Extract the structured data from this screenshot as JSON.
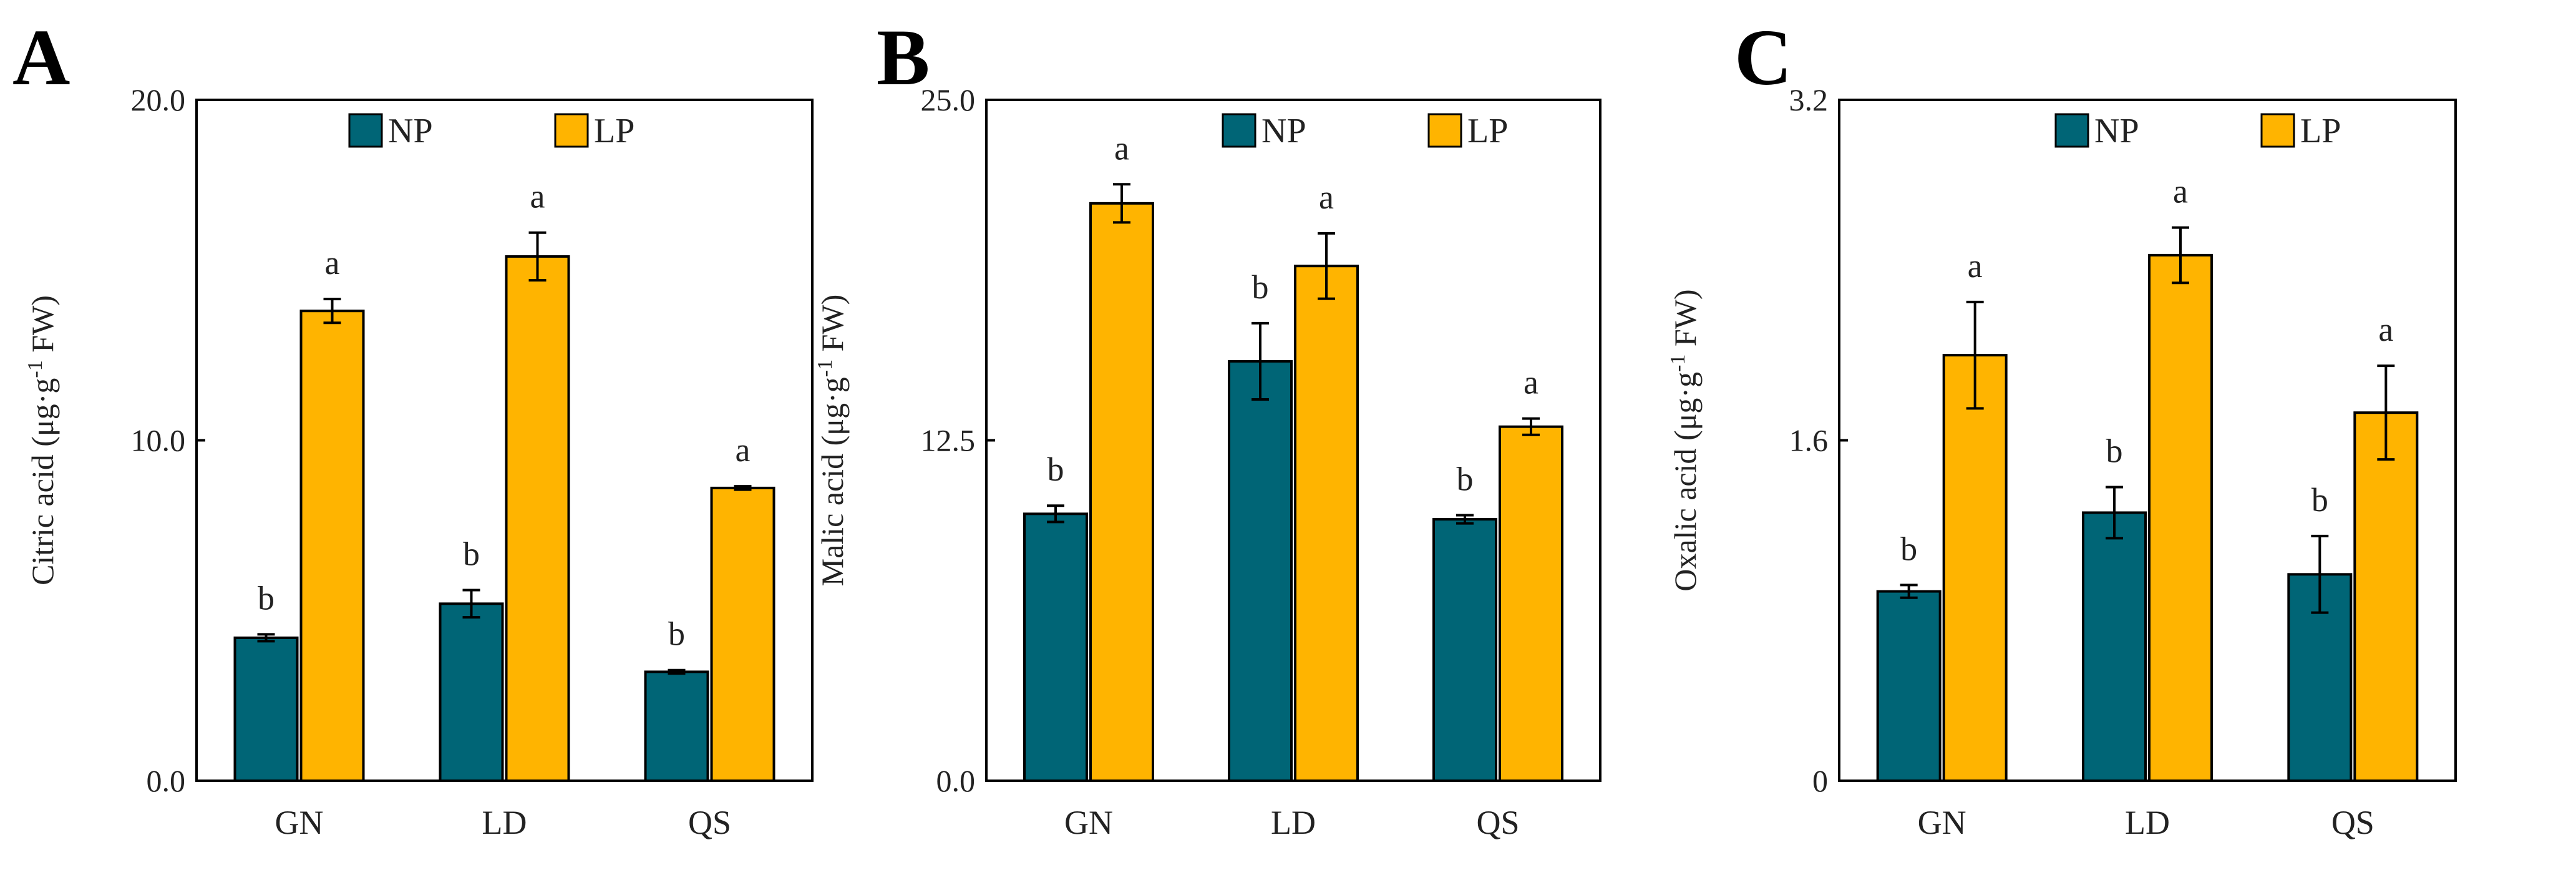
{
  "colors": {
    "np": "#006576",
    "lp": "#FFB400"
  },
  "chart_data": [
    {
      "type": "bar",
      "panel": "A",
      "ylabel_main": "Citric acid (μg·g",
      "ylabel_sup": "-1",
      "ylabel_tail": " FW)",
      "ylim": [
        0,
        20
      ],
      "yticks": [
        0,
        10,
        20
      ],
      "ytick_labels": [
        "0.0",
        "10.0",
        "20.0"
      ],
      "categories": [
        "GN",
        "LD",
        "QS"
      ],
      "legend": [
        "NP",
        "LP"
      ],
      "series": [
        {
          "name": "NP",
          "values": [
            4.2,
            5.2,
            3.2
          ],
          "errors": [
            0.1,
            0.4,
            0.05
          ],
          "sig": [
            "b",
            "b",
            "b"
          ]
        },
        {
          "name": "LP",
          "values": [
            13.8,
            15.4,
            8.6
          ],
          "errors": [
            0.35,
            0.7,
            0.05
          ],
          "sig": [
            "a",
            "a",
            "a"
          ]
        }
      ]
    },
    {
      "type": "bar",
      "panel": "B",
      "ylabel_main": "Malic acid (μg·g",
      "ylabel_sup": "-1",
      "ylabel_tail": " FW)",
      "ylim": [
        0,
        25
      ],
      "yticks": [
        0,
        12.5,
        25
      ],
      "ytick_labels": [
        "0.0",
        "12.5",
        "25.0"
      ],
      "categories": [
        "GN",
        "LD",
        "QS"
      ],
      "legend": [
        "NP",
        "LP"
      ],
      "series": [
        {
          "name": "NP",
          "values": [
            9.8,
            15.4,
            9.6
          ],
          "errors": [
            0.3,
            1.4,
            0.15
          ],
          "sig": [
            "b",
            "b",
            "b"
          ]
        },
        {
          "name": "LP",
          "values": [
            21.2,
            18.9,
            13.0
          ],
          "errors": [
            0.7,
            1.2,
            0.3
          ],
          "sig": [
            "a",
            "a",
            "a"
          ]
        }
      ]
    },
    {
      "type": "bar",
      "panel": "C",
      "ylabel_main": "Oxalic acid (μg·g",
      "ylabel_sup": "-1",
      "ylabel_tail": " FW)",
      "ylim": [
        0,
        3.2
      ],
      "yticks": [
        0,
        1.6,
        3.2
      ],
      "ytick_labels": [
        "0",
        "1.6",
        "3.2"
      ],
      "categories": [
        "GN",
        "LD",
        "QS"
      ],
      "legend": [
        "NP",
        "LP"
      ],
      "series": [
        {
          "name": "NP",
          "values": [
            0.89,
            1.26,
            0.97
          ],
          "errors": [
            0.03,
            0.12,
            0.18
          ],
          "sig": [
            "b",
            "b",
            "b"
          ]
        },
        {
          "name": "LP",
          "values": [
            2.0,
            2.47,
            1.73
          ],
          "errors": [
            0.25,
            0.13,
            0.22
          ],
          "sig": [
            "a",
            "a",
            "a"
          ]
        }
      ]
    }
  ]
}
